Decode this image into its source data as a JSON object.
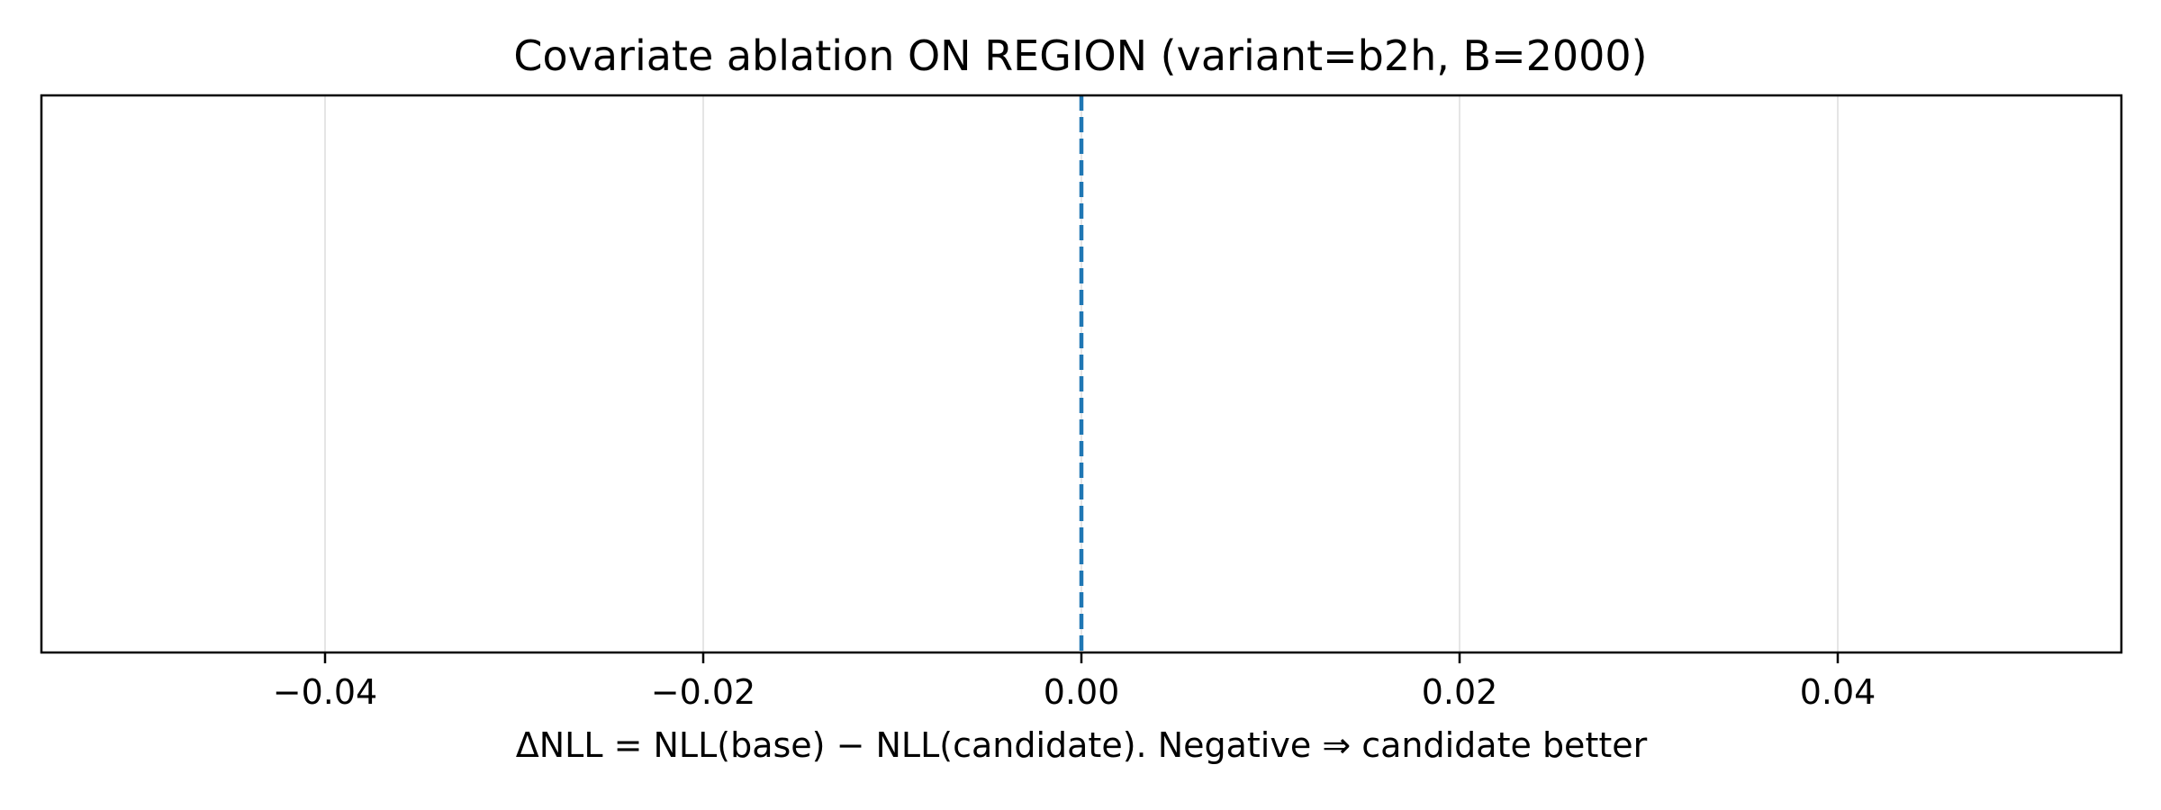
{
  "chart_data": {
    "type": "line",
    "title": "Covariate ablation ON REGION (variant=b2h, B=2000)",
    "xlabel": "ΔNLL = NLL(base) − NLL(candidate). Negative ⇒ candidate better",
    "ylabel": "",
    "xlim": [
      -0.055,
      0.055
    ],
    "ylim": [
      0,
      1
    ],
    "x_ticks": [
      -0.04,
      -0.02,
      0.0,
      0.02,
      0.04
    ],
    "x_tick_labels": [
      "−0.04",
      "−0.02",
      "0.00",
      "0.02",
      "0.04"
    ],
    "y_ticks_visible": false,
    "grid": "x-only",
    "series": [],
    "reference_lines": [
      {
        "orientation": "vertical",
        "x": 0.0,
        "style": "dashed",
        "color": "#1f77b4"
      }
    ],
    "colors": {
      "grid": "#e5e5e5",
      "frame": "#000000",
      "reference_line": "#1f77b4"
    }
  }
}
